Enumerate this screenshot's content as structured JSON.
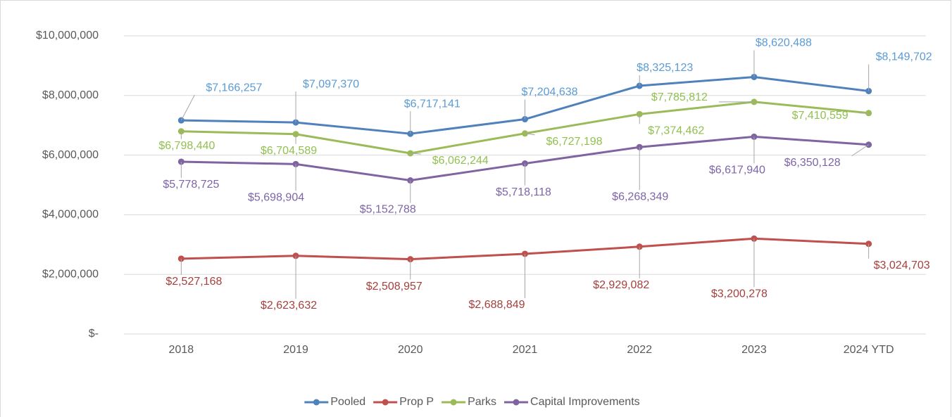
{
  "chart_data": {
    "type": "line",
    "categories": [
      "2018",
      "2019",
      "2020",
      "2021",
      "2022",
      "2023",
      "2024 YTD"
    ],
    "ylim": [
      0,
      10000000
    ],
    "yticks": [
      {
        "value": 0,
        "label": "$-"
      },
      {
        "value": 2000000,
        "label": "$2,000,000"
      },
      {
        "value": 4000000,
        "label": "$4,000,000"
      },
      {
        "value": 6000000,
        "label": "$6,000,000"
      },
      {
        "value": 8000000,
        "label": "$8,000,000"
      },
      {
        "value": 10000000,
        "label": "$10,000,000"
      }
    ],
    "grid": true,
    "legend": "bottom",
    "series": [
      {
        "name": "Pooled",
        "color": "#4f81bd",
        "label_color": "#5b9bd5",
        "values": [
          7166257,
          7097370,
          6717141,
          7204638,
          8325123,
          8620488,
          8149702
        ],
        "value_labels": [
          "$7,166,257",
          "$7,097,370",
          "$6,717,141",
          "$7,204,638",
          "$8,325,123",
          "$8,620,488",
          "$8,149,702"
        ]
      },
      {
        "name": "Prop P",
        "color": "#c0504d",
        "label_color": "#a5403d",
        "values": [
          2527168,
          2623632,
          2508957,
          2688849,
          2929082,
          3200278,
          3024703
        ],
        "value_labels": [
          "$2,527,168",
          "$2,623,632",
          "$2,508,957",
          "$2,688,849",
          "$2,929,082",
          "$3,200,278",
          "$3,024,703"
        ]
      },
      {
        "name": "Parks",
        "color": "#9bbb59",
        "label_color": "#92c050",
        "values": [
          6798440,
          6704589,
          6062244,
          6727198,
          7374462,
          7785812,
          7410559
        ],
        "value_labels": [
          "$6,798,440",
          "$6,704,589",
          "$6,062,244",
          "$6,727,198",
          "$7,374,462",
          "$7,785,812",
          "$7,410,559"
        ]
      },
      {
        "name": "Capital Improvements",
        "color": "#8064a2",
        "label_color": "#7e64a8",
        "values": [
          5778725,
          5698904,
          5152788,
          5718118,
          6268349,
          6617940,
          6350128
        ],
        "value_labels": [
          "$5,778,725",
          "$5,698,904",
          "$5,152,788",
          "$5,718,118",
          "$6,268,349",
          "$6,617,940",
          "$6,350,128"
        ]
      }
    ]
  }
}
